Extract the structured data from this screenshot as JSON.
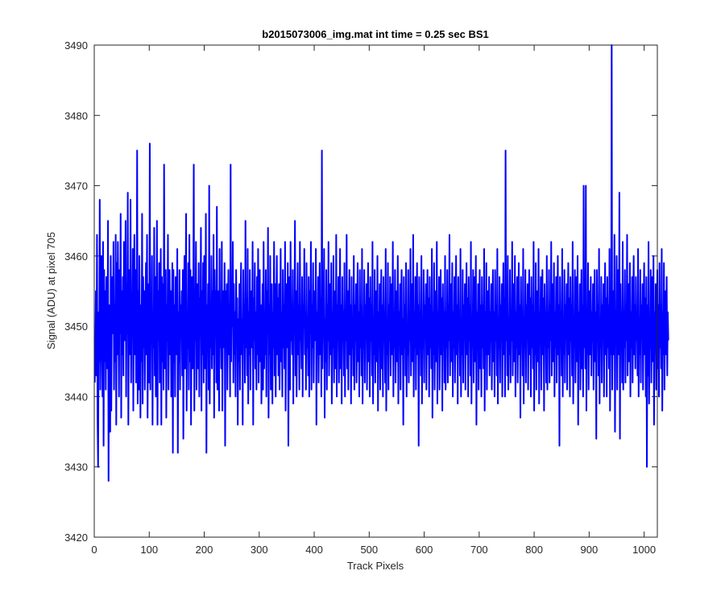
{
  "chart_data": {
    "type": "line",
    "title": "b2015073006_img.mat int time = 0.25 sec   BS1",
    "xlabel": "Track Pixels",
    "ylabel": "Signal (ADU) at pixel 705",
    "xlim": [
      0,
      1024
    ],
    "ylim": [
      3420,
      3490
    ],
    "xticks": [
      0,
      100,
      200,
      300,
      400,
      500,
      600,
      700,
      800,
      900,
      1000
    ],
    "yticks": [
      3420,
      3430,
      3440,
      3450,
      3460,
      3470,
      3480,
      3490
    ],
    "grid": false,
    "legend": "none",
    "series": [
      {
        "color": "#0000ff",
        "note_x": "x values are pixels 1..1024 in order",
        "values": [
          3442,
          3447,
          3455,
          3443,
          3463,
          3437,
          3430,
          3452,
          3445,
          3468,
          3441,
          3452,
          3460,
          3448,
          3440,
          3462,
          3433,
          3458,
          3445,
          3455,
          3441,
          3457,
          3449,
          3444,
          3465,
          3428,
          3453,
          3441,
          3435,
          3460,
          3438,
          3452,
          3457,
          3449,
          3462,
          3441,
          3453,
          3445,
          3463,
          3436,
          3459,
          3446,
          3462,
          3450,
          3440,
          3458,
          3449,
          3466,
          3437,
          3455,
          3446,
          3457,
          3443,
          3462,
          3451,
          3448,
          3465,
          3440,
          3456,
          3449,
          3469,
          3436,
          3452,
          3458,
          3446,
          3468,
          3442,
          3453,
          3449,
          3461,
          3438,
          3455,
          3463,
          3446,
          3458,
          3442,
          3450,
          3475,
          3439,
          3455,
          3441,
          3460,
          3450,
          3437,
          3453,
          3445,
          3466,
          3439,
          3457,
          3447,
          3455,
          3441,
          3451,
          3459,
          3446,
          3463,
          3437,
          3450,
          3456,
          3442,
          3476,
          3441,
          3453,
          3448,
          3460,
          3436,
          3452,
          3447,
          3464,
          3443,
          3457,
          3440,
          3450,
          3465,
          3436,
          3455,
          3448,
          3459,
          3442,
          3449,
          3461,
          3436,
          3457,
          3445,
          3456,
          3441,
          3473,
          3450,
          3444,
          3458,
          3437,
          3453,
          3448,
          3463,
          3441,
          3450,
          3458,
          3446,
          3455,
          3440,
          3449,
          3459,
          3432,
          3458,
          3445,
          3453,
          3440,
          3457,
          3450,
          3446,
          3461,
          3432,
          3452,
          3445,
          3458,
          3441,
          3453,
          3449,
          3455,
          3443,
          3458,
          3434,
          3449,
          3460,
          3444,
          3451,
          3466,
          3438,
          3452,
          3447,
          3459,
          3441,
          3463,
          3445,
          3458,
          3436,
          3450,
          3457,
          3444,
          3452,
          3473,
          3438,
          3455,
          3448,
          3462,
          3441,
          3450,
          3456,
          3444,
          3459,
          3440,
          3454,
          3449,
          3464,
          3438,
          3455,
          3446,
          3459,
          3442,
          3460,
          3451,
          3444,
          3466,
          3432,
          3453,
          3447,
          3456,
          3441,
          3470,
          3439,
          3451,
          3447,
          3460,
          3444,
          3455,
          3446,
          3463,
          3437,
          3458,
          3449,
          3455,
          3442,
          3467,
          3441,
          3450,
          3455,
          3438,
          3461,
          3447,
          3453,
          3444,
          3462,
          3438,
          3450,
          3455,
          3447,
          3459,
          3433,
          3455,
          3449,
          3456,
          3441,
          3451,
          3458,
          3446,
          3453,
          3440,
          3473,
          3445,
          3455,
          3450,
          3462,
          3442,
          3456,
          3446,
          3452,
          3440,
          3458,
          3449,
          3454,
          3436,
          3451,
          3445,
          3456,
          3441,
          3453,
          3459,
          3446,
          3451,
          3436,
          3458,
          3448,
          3453,
          3442,
          3465,
          3447,
          3454,
          3443,
          3461,
          3439,
          3452,
          3446,
          3458,
          3441,
          3450,
          3455,
          3447,
          3462,
          3436,
          3454,
          3448,
          3459,
          3444,
          3452,
          3441,
          3457,
          3446,
          3461,
          3442,
          3450,
          3458,
          3445,
          3453,
          3439,
          3448,
          3456,
          3441,
          3462,
          3444,
          3451,
          3446,
          3458,
          3440,
          3455,
          3449,
          3464,
          3437,
          3453,
          3446,
          3460,
          3441,
          3450,
          3456,
          3439,
          3452,
          3447,
          3462,
          3443,
          3456,
          3440,
          3451,
          3460,
          3446,
          3454,
          3443,
          3456,
          3441,
          3450,
          3461,
          3445,
          3452,
          3440,
          3458,
          3447,
          3453,
          3444,
          3462,
          3438,
          3451,
          3456,
          3447,
          3459,
          3433,
          3449,
          3457,
          3441,
          3462,
          3448,
          3451,
          3446,
          3458,
          3439,
          3452,
          3449,
          3465,
          3443,
          3455,
          3440,
          3451,
          3459,
          3446,
          3453,
          3441,
          3462,
          3448,
          3451,
          3444,
          3457,
          3440,
          3453,
          3450,
          3461,
          3446,
          3452,
          3441,
          3459,
          3447,
          3451,
          3443,
          3457,
          3440,
          3455,
          3449,
          3462,
          3441,
          3453,
          3447,
          3459,
          3442,
          3450,
          3455,
          3448,
          3461,
          3436,
          3452,
          3446,
          3457,
          3442,
          3451,
          3459,
          3446,
          3454,
          3440,
          3475,
          3444,
          3452,
          3449,
          3461,
          3437,
          3451,
          3445,
          3458,
          3441,
          3453,
          3448,
          3462,
          3443,
          3450,
          3456,
          3446,
          3459,
          3439,
          3452,
          3447,
          3460,
          3442,
          3451,
          3455,
          3444,
          3463,
          3440,
          3453,
          3448,
          3457,
          3442,
          3450,
          3461,
          3444,
          3453,
          3439,
          3457,
          3448,
          3452,
          3443,
          3459,
          3440,
          3452,
          3448,
          3463,
          3444,
          3455,
          3441,
          3451,
          3458,
          3446,
          3453,
          3439,
          3457,
          3447,
          3451,
          3443,
          3460,
          3441,
          3453,
          3448,
          3456,
          3442,
          3450,
          3459,
          3445,
          3452,
          3440,
          3458,
          3447,
          3453,
          3443,
          3461,
          3439,
          3451,
          3447,
          3458,
          3442,
          3453,
          3449,
          3456,
          3441,
          3452,
          3459,
          3445,
          3454,
          3440,
          3457,
          3448,
          3453,
          3443,
          3462,
          3439,
          3451,
          3446,
          3458,
          3442,
          3450,
          3455,
          3445,
          3460,
          3438,
          3452,
          3447,
          3456,
          3441,
          3451,
          3458,
          3444,
          3453,
          3440,
          3457,
          3448,
          3452,
          3442,
          3461,
          3438,
          3451,
          3446,
          3459,
          3441,
          3453,
          3448,
          3457,
          3443,
          3450,
          3456,
          3446,
          3462,
          3440,
          3452,
          3447,
          3458,
          3442,
          3451,
          3455,
          3445,
          3460,
          3439,
          3452,
          3448,
          3456,
          3441,
          3453,
          3458,
          3446,
          3451,
          3436,
          3457,
          3447,
          3453,
          3443,
          3459,
          3440,
          3450,
          3446,
          3458,
          3442,
          3452,
          3448,
          3461,
          3443,
          3451,
          3456,
          3445,
          3463,
          3440,
          3452,
          3447,
          3457,
          3441,
          3451,
          3459,
          3446,
          3453,
          3433,
          3457,
          3448,
          3452,
          3443,
          3460,
          3439,
          3451,
          3447,
          3458,
          3442,
          3453,
          3449,
          3456,
          3441,
          3450,
          3458,
          3446,
          3454,
          3440,
          3457,
          3447,
          3453,
          3444,
          3461,
          3437,
          3452,
          3446,
          3459,
          3441,
          3450,
          3455,
          3445,
          3462,
          3439,
          3452,
          3448,
          3457,
          3441,
          3451,
          3458,
          3446,
          3454,
          3438,
          3456,
          3448,
          3452,
          3442,
          3460,
          3441,
          3452,
          3447,
          3458,
          3442,
          3453,
          3448,
          3463,
          3443,
          3451,
          3456,
          3445,
          3459,
          3440,
          3452,
          3447,
          3457,
          3442,
          3450,
          3460,
          3446,
          3453,
          3439,
          3457,
          3448,
          3452,
          3443,
          3461,
          3440,
          3451,
          3446,
          3458,
          3442,
          3453,
          3449,
          3456,
          3441,
          3451,
          3459,
          3446,
          3454,
          3440,
          3457,
          3448,
          3453,
          3443,
          3462,
          3439,
          3451,
          3447,
          3458,
          3442,
          3450,
          3457,
          3445,
          3460,
          3436,
          3452,
          3447,
          3456,
          3441,
          3451,
          3458,
          3444,
          3453,
          3440,
          3457,
          3447,
          3453,
          3444,
          3461,
          3438,
          3452,
          3446,
          3459,
          3441,
          3450,
          3455,
          3446,
          3457,
          3443,
          3452,
          3448,
          3456,
          3441,
          3451,
          3458,
          3445,
          3452,
          3440,
          3458,
          3448,
          3453,
          3443,
          3461,
          3439,
          3451,
          3447,
          3457,
          3442,
          3453,
          3449,
          3456,
          3440,
          3451,
          3459,
          3446,
          3454,
          3440,
          3475,
          3448,
          3452,
          3443,
          3460,
          3441,
          3451,
          3446,
          3458,
          3442,
          3452,
          3448,
          3462,
          3443,
          3450,
          3456,
          3445,
          3460,
          3440,
          3452,
          3447,
          3457,
          3442,
          3451,
          3459,
          3446,
          3453,
          3437,
          3457,
          3448,
          3452,
          3443,
          3461,
          3439,
          3451,
          3447,
          3458,
          3442,
          3453,
          3449,
          3456,
          3441,
          3451,
          3458,
          3446,
          3454,
          3440,
          3457,
          3447,
          3453,
          3444,
          3462,
          3438,
          3452,
          3446,
          3459,
          3441,
          3450,
          3455,
          3445,
          3461,
          3439,
          3452,
          3448,
          3457,
          3441,
          3451,
          3458,
          3446,
          3454,
          3438,
          3456,
          3448,
          3452,
          3442,
          3460,
          3441,
          3452,
          3447,
          3458,
          3442,
          3453,
          3448,
          3462,
          3443,
          3451,
          3456,
          3445,
          3459,
          3440,
          3452,
          3447,
          3457,
          3442,
          3450,
          3460,
          3446,
          3453,
          3433,
          3457,
          3448,
          3452,
          3443,
          3461,
          3440,
          3451,
          3446,
          3458,
          3442,
          3453,
          3449,
          3456,
          3441,
          3451,
          3459,
          3446,
          3454,
          3440,
          3457,
          3448,
          3453,
          3443,
          3462,
          3439,
          3451,
          3447,
          3458,
          3442,
          3450,
          3457,
          3445,
          3460,
          3436,
          3452,
          3447,
          3456,
          3441,
          3451,
          3458,
          3444,
          3453,
          3440,
          3470,
          3447,
          3453,
          3444,
          3470,
          3438,
          3452,
          3446,
          3459,
          3441,
          3450,
          3455,
          3446,
          3457,
          3443,
          3452,
          3448,
          3456,
          3441,
          3451,
          3458,
          3445,
          3452,
          3434,
          3458,
          3448,
          3453,
          3443,
          3461,
          3439,
          3451,
          3447,
          3457,
          3442,
          3453,
          3449,
          3456,
          3440,
          3451,
          3459,
          3446,
          3454,
          3440,
          3457,
          3447,
          3453,
          3444,
          3461,
          3438,
          3452,
          3446,
          3490,
          3441,
          3450,
          3455,
          3446,
          3463,
          3435,
          3452,
          3448,
          3460,
          3441,
          3451,
          3458,
          3446,
          3469,
          3434,
          3456,
          3448,
          3452,
          3442,
          3462,
          3441,
          3452,
          3447,
          3458,
          3442,
          3453,
          3448,
          3463,
          3443,
          3451,
          3456,
          3445,
          3459,
          3440,
          3452,
          3447,
          3457,
          3442,
          3450,
          3460,
          3446,
          3453,
          3444,
          3457,
          3448,
          3452,
          3443,
          3461,
          3440,
          3451,
          3446,
          3458,
          3442,
          3453,
          3449,
          3456,
          3441,
          3451,
          3459,
          3446,
          3454,
          3440,
          3457,
          3430,
          3453,
          3443,
          3462,
          3439,
          3451,
          3447,
          3458,
          3442,
          3450,
          3457,
          3445,
          3460,
          3436,
          3452,
          3447,
          3456,
          3441,
          3451,
          3458,
          3444,
          3453,
          3440,
          3459,
          3447,
          3453,
          3444,
          3461,
          3438,
          3452,
          3446,
          3459,
          3441,
          3450,
          3455,
          3446,
          3457,
          3443,
          3452,
          3448
        ]
      }
    ]
  }
}
